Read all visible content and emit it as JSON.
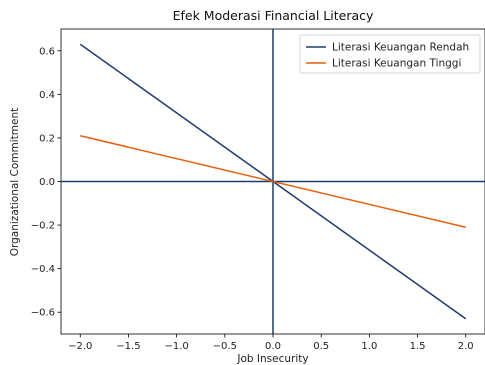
{
  "chart_data": {
    "type": "line",
    "title": "Efek Moderasi Financial Literacy",
    "xlabel": "Job Insecurity",
    "ylabel": "Organizational Commitment",
    "xlim": [
      -2.2,
      2.2
    ],
    "ylim": [
      -0.7,
      0.7
    ],
    "x_ticks": [
      -2.0,
      -1.5,
      -1.0,
      -0.5,
      0.0,
      0.5,
      1.0,
      1.5,
      2.0
    ],
    "x_tick_labels": [
      "−2.0",
      "−1.5",
      "−1.0",
      "−0.5",
      "0.0",
      "0.5",
      "1.0",
      "1.5",
      "2.0"
    ],
    "y_ticks": [
      0.6,
      0.4,
      0.2,
      0.0,
      -0.2,
      -0.4,
      -0.6
    ],
    "y_tick_labels": [
      "0.6",
      "0.4",
      "0.2",
      "0.0",
      "−0.2",
      "−0.4",
      "−0.6"
    ],
    "grid": false,
    "reference_lines": {
      "x": 0,
      "y": 0,
      "color": "#1f3b6e"
    },
    "legend_position": "top-right",
    "series": [
      {
        "name": "Literasi Keuangan Rendah",
        "color": "#1f3b6e",
        "x": [
          -2.0,
          2.0
        ],
        "y": [
          0.63,
          -0.63
        ]
      },
      {
        "name": "Literasi Keuangan Tinggi",
        "color": "#ea5f0c",
        "x": [
          -2.0,
          2.0
        ],
        "y": [
          0.21,
          -0.21
        ]
      }
    ]
  }
}
